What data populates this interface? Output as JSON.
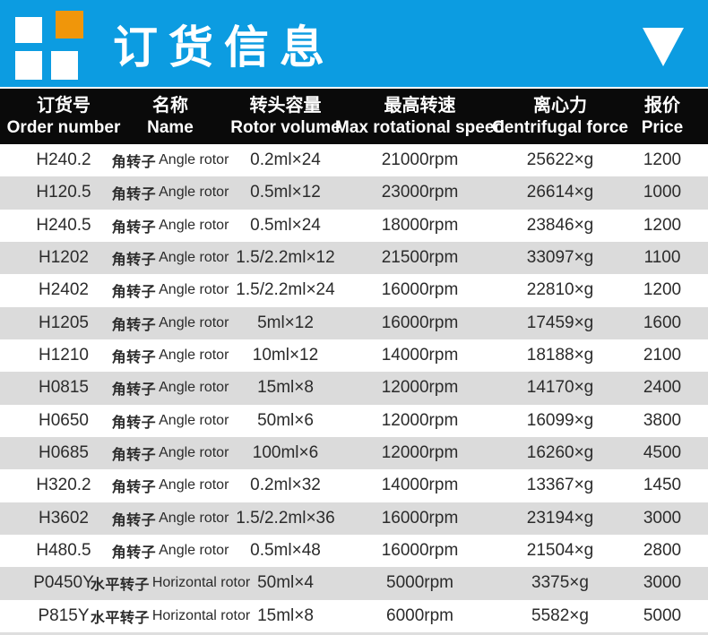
{
  "colors": {
    "banner_blue": "#0c9ce1",
    "logo_orange": "#f0960a",
    "header_black": "#0a0a0a",
    "row_alt_gray": "#dbdbdb"
  },
  "banner": {
    "title": "订货信息"
  },
  "table": {
    "header": {
      "columns": [
        {
          "cn": "订货号",
          "en": "Order number"
        },
        {
          "cn": "名称",
          "en": "Name"
        },
        {
          "cn": "转头容量",
          "en": "Rotor volume"
        },
        {
          "cn": "最高转速",
          "en": "Max rotational speed"
        },
        {
          "cn": "离心力",
          "en": "Centrifugal force"
        },
        {
          "cn": "报价",
          "en": "Price"
        }
      ]
    },
    "rows": [
      {
        "order": "H240.2",
        "name_cn": "角转子",
        "name_en": "Angle rotor",
        "volume": "0.2ml×24",
        "speed": "21000rpm",
        "force": "25622×g",
        "price": "1200"
      },
      {
        "order": "H120.5",
        "name_cn": "角转子",
        "name_en": "Angle rotor",
        "volume": "0.5ml×12",
        "speed": "23000rpm",
        "force": "26614×g",
        "price": "1000"
      },
      {
        "order": "H240.5",
        "name_cn": "角转子",
        "name_en": "Angle rotor",
        "volume": "0.5ml×24",
        "speed": "18000rpm",
        "force": "23846×g",
        "price": "1200"
      },
      {
        "order": "H1202",
        "name_cn": "角转子",
        "name_en": "Angle rotor",
        "volume": "1.5/2.2ml×12",
        "speed": "21500rpm",
        "force": "33097×g",
        "price": "1100"
      },
      {
        "order": "H2402",
        "name_cn": "角转子",
        "name_en": "Angle rotor",
        "volume": "1.5/2.2ml×24",
        "speed": "16000rpm",
        "force": "22810×g",
        "price": "1200"
      },
      {
        "order": "H1205",
        "name_cn": "角转子",
        "name_en": "Angle rotor",
        "volume": "5ml×12",
        "speed": "16000rpm",
        "force": "17459×g",
        "price": "1600"
      },
      {
        "order": "H1210",
        "name_cn": "角转子",
        "name_en": "Angle rotor",
        "volume": "10ml×12",
        "speed": "14000rpm",
        "force": "18188×g",
        "price": "2100"
      },
      {
        "order": "H0815",
        "name_cn": "角转子",
        "name_en": "Angle rotor",
        "volume": "15ml×8",
        "speed": "12000rpm",
        "force": "14170×g",
        "price": "2400"
      },
      {
        "order": "H0650",
        "name_cn": "角转子",
        "name_en": "Angle rotor",
        "volume": "50ml×6",
        "speed": "12000rpm",
        "force": "16099×g",
        "price": "3800"
      },
      {
        "order": "H0685",
        "name_cn": "角转子",
        "name_en": "Angle rotor",
        "volume": "100ml×6",
        "speed": "12000rpm",
        "force": "16260×g",
        "price": "4500"
      },
      {
        "order": "H320.2",
        "name_cn": "角转子",
        "name_en": "Angle rotor",
        "volume": "0.2ml×32",
        "speed": "14000rpm",
        "force": "13367×g",
        "price": "1450"
      },
      {
        "order": "H3602",
        "name_cn": "角转子",
        "name_en": "Angle rotor",
        "volume": "1.5/2.2ml×36",
        "speed": "16000rpm",
        "force": "23194×g",
        "price": "3000"
      },
      {
        "order": "H480.5",
        "name_cn": "角转子",
        "name_en": "Angle rotor",
        "volume": "0.5ml×48",
        "speed": "16000rpm",
        "force": "21504×g",
        "price": "2800"
      },
      {
        "order": "P0450Y",
        "name_cn": "水平转子",
        "name_en": "Horizontal rotor",
        "volume": "50ml×4",
        "speed": "5000rpm",
        "force": "3375×g",
        "price": "3000"
      },
      {
        "order": "P815Y",
        "name_cn": "水平转子",
        "name_en": "Horizontal rotor",
        "volume": "15ml×8",
        "speed": "6000rpm",
        "force": "5582×g",
        "price": "5000"
      }
    ]
  }
}
